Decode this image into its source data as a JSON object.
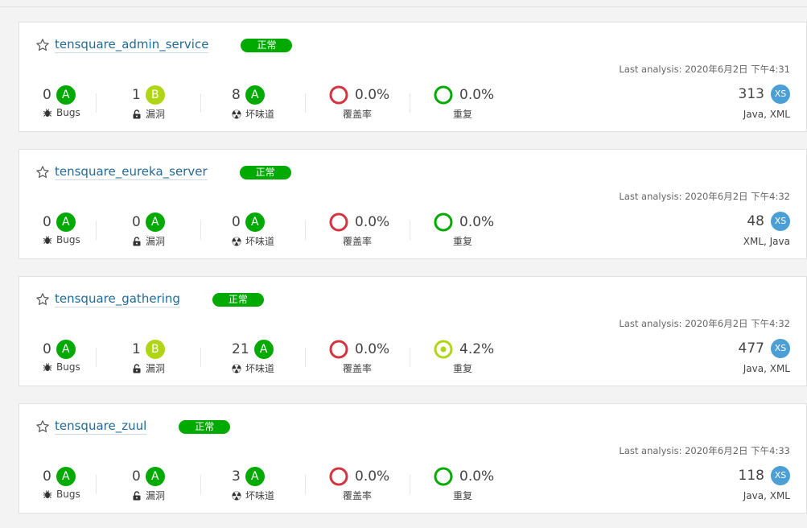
{
  "colors": {
    "rating_A": "#00aa00",
    "rating_B": "#b0d513",
    "coverage_ring": "#d4333f",
    "passed": "#00aa00",
    "size": "#4b9fd5",
    "link": "#236a97"
  },
  "labels": {
    "bugs": "Bugs",
    "vulnerabilities": "漏洞",
    "code_smells": "坏味道",
    "coverage": "覆盖率",
    "duplications": "重复"
  },
  "projects": [
    {
      "name": "tensquare_admin_service",
      "quality_gate": "正常",
      "last_analysis": "Last analysis: 2020年6月2日 下午4:31",
      "bugs": "0",
      "bugs_rating": "A",
      "vulnerabilities": "1",
      "vulnerabilities_rating": "B",
      "code_smells": "8",
      "code_smells_rating": "A",
      "coverage": "0.0%",
      "duplications": "0.0%",
      "lines": "313",
      "size_rating": "XS",
      "languages": "Java, XML"
    },
    {
      "name": "tensquare_eureka_server",
      "quality_gate": "正常",
      "last_analysis": "Last analysis: 2020年6月2日 下午4:32",
      "bugs": "0",
      "bugs_rating": "A",
      "vulnerabilities": "0",
      "vulnerabilities_rating": "A",
      "code_smells": "0",
      "code_smells_rating": "A",
      "coverage": "0.0%",
      "duplications": "0.0%",
      "lines": "48",
      "size_rating": "XS",
      "languages": "XML, Java"
    },
    {
      "name": "tensquare_gathering",
      "quality_gate": "正常",
      "last_analysis": "Last analysis: 2020年6月2日 下午4:32",
      "bugs": "0",
      "bugs_rating": "A",
      "vulnerabilities": "1",
      "vulnerabilities_rating": "B",
      "code_smells": "21",
      "code_smells_rating": "A",
      "coverage": "0.0%",
      "duplications": "4.2%",
      "lines": "477",
      "size_rating": "XS",
      "languages": "Java, XML"
    },
    {
      "name": "tensquare_zuul",
      "quality_gate": "正常",
      "last_analysis": "Last analysis: 2020年6月2日 下午4:33",
      "bugs": "0",
      "bugs_rating": "A",
      "vulnerabilities": "0",
      "vulnerabilities_rating": "A",
      "code_smells": "3",
      "code_smells_rating": "A",
      "coverage": "0.0%",
      "duplications": "0.0%",
      "lines": "118",
      "size_rating": "XS",
      "languages": "Java, XML"
    }
  ]
}
